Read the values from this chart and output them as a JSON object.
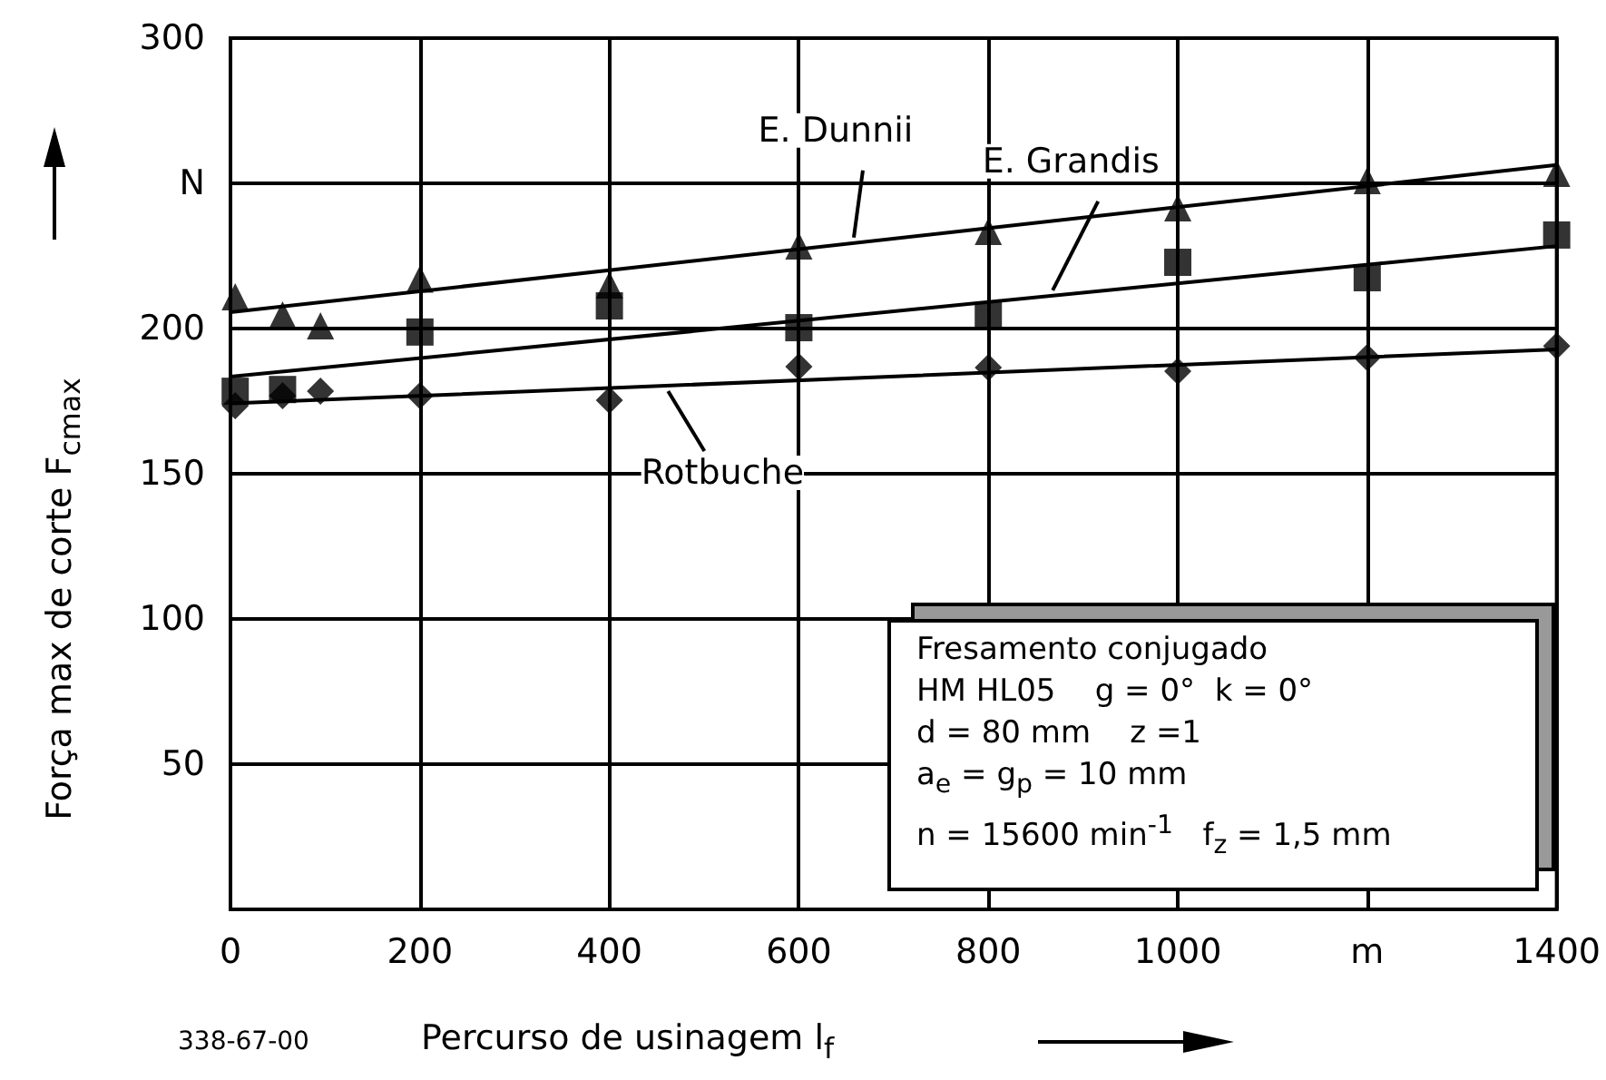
{
  "chart_data": {
    "type": "scatter",
    "xlabel": "Percurso de usinagem l$_{f}$",
    "ylabel": "Força max de corte F$_{cmax}$",
    "xlim": [
      0,
      1400
    ],
    "xticks": [
      0,
      200,
      400,
      600,
      800,
      1000,
      {
        "value": 1200,
        "label": "m"
      },
      1400
    ],
    "ylim": [
      0,
      300
    ],
    "yticks": [
      {
        "value": 0,
        "label": null
      },
      50,
      100,
      150,
      200,
      {
        "value": 250,
        "label": "N"
      },
      300
    ],
    "grid": true,
    "series": [
      {
        "marker": "triangle",
        "color": "#000000",
        "x": [
          5,
          55,
          95,
          200,
          400,
          600,
          800,
          1000,
          1200,
          1400
        ],
        "values": [
          210.9,
          204.7,
          200.9,
          217,
          215,
          228.4,
          233.4,
          241.6,
          250.9,
          253.4
        ]
      },
      {
        "marker": "square",
        "color": "#000000",
        "x": [
          5,
          55,
          200,
          400,
          600,
          800,
          1000,
          1200,
          1400
        ],
        "values": [
          178.4,
          179,
          198.8,
          207.8,
          200.3,
          204.4,
          222.8,
          217.5,
          232.2
        ]
      },
      {
        "marker": "diamond",
        "color": "#000000",
        "x": [
          5,
          55,
          95,
          200,
          400,
          600,
          800,
          1000,
          1200,
          1400
        ],
        "values": [
          173.4,
          176.9,
          178.4,
          176.9,
          175.3,
          186.9,
          186.6,
          185.3,
          190,
          194
        ]
      },
      {
        "type": "line",
        "name": "E. Dunnii",
        "color": "#000000",
        "line_style": "solid",
        "x": [
          0,
          1400
        ],
        "values": [
          205.6,
          256.3
        ]
      },
      {
        "type": "line",
        "name": "E. Grandis",
        "color": "#000000",
        "line_style": "solid",
        "x": [
          0,
          1400
        ],
        "values": [
          183.4,
          228.4
        ]
      },
      {
        "type": "line",
        "name": "Rotbuche",
        "color": "#000000",
        "line_style": "solid",
        "x": [
          0,
          1400
        ],
        "values": [
          174.2,
          192.8
        ]
      }
    ],
    "annotations": [
      "Fresamento conjugado\nHM HL05    g = 0°  k = 0°\nd = 80 mm    z =1\na$_{e}$ = g$_{p}$ = 10 mm\nn = 15600 min$^{-1}$   f$_{z}$ = 1,5 mm",
      "338-67-00"
    ]
  }
}
